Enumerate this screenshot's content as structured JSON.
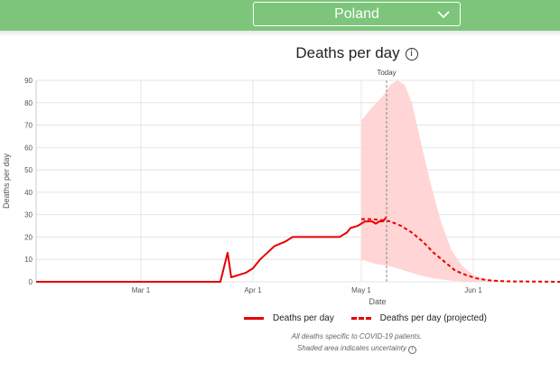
{
  "header": {
    "country": "Poland",
    "country_dropdown_icon": "chevron-down-icon"
  },
  "chart_data": {
    "type": "line",
    "title": "Deaths per day",
    "xlabel": "Date",
    "ylabel": "Deaths per day",
    "x_range": [
      "2020-02-01",
      "2020-06-25"
    ],
    "ylim": [
      0,
      90
    ],
    "y_ticks": [
      0,
      10,
      20,
      30,
      40,
      50,
      60,
      70,
      80,
      90
    ],
    "x_ticks": [
      {
        "date": "2020-03-01",
        "label": "Mar 1"
      },
      {
        "date": "2020-04-01",
        "label": "Apr 1"
      },
      {
        "date": "2020-05-01",
        "label": "May 1"
      },
      {
        "date": "2020-06-01",
        "label": "Jun 1"
      }
    ],
    "today": {
      "date": "2020-05-08",
      "label": "Today"
    },
    "grid": true,
    "series": [
      {
        "name": "Deaths per day",
        "style": "solid",
        "color": "#e60000",
        "points": [
          [
            "2020-02-01",
            0
          ],
          [
            "2020-03-23",
            0
          ],
          [
            "2020-03-25",
            13
          ],
          [
            "2020-03-26",
            2
          ],
          [
            "2020-03-28",
            3
          ],
          [
            "2020-03-30",
            4
          ],
          [
            "2020-04-01",
            6
          ],
          [
            "2020-04-03",
            10
          ],
          [
            "2020-04-05",
            13
          ],
          [
            "2020-04-07",
            16
          ],
          [
            "2020-04-10",
            18
          ],
          [
            "2020-04-12",
            20
          ],
          [
            "2020-04-20",
            20
          ],
          [
            "2020-04-25",
            20
          ],
          [
            "2020-04-27",
            22
          ],
          [
            "2020-04-28",
            24
          ],
          [
            "2020-04-30",
            25
          ],
          [
            "2020-05-02",
            27
          ],
          [
            "2020-05-04",
            27
          ],
          [
            "2020-05-05",
            26
          ],
          [
            "2020-05-06",
            27
          ],
          [
            "2020-05-07",
            27
          ],
          [
            "2020-05-08",
            29
          ]
        ]
      },
      {
        "name": "Deaths per day (projected)",
        "style": "dashed",
        "color": "#e60000",
        "points": [
          [
            "2020-05-01",
            28
          ],
          [
            "2020-05-04",
            28
          ],
          [
            "2020-05-07",
            27.5
          ],
          [
            "2020-05-09",
            27
          ],
          [
            "2020-05-12",
            25
          ],
          [
            "2020-05-15",
            22
          ],
          [
            "2020-05-18",
            18
          ],
          [
            "2020-05-21",
            13
          ],
          [
            "2020-05-24",
            9
          ],
          [
            "2020-05-27",
            5
          ],
          [
            "2020-05-30",
            3
          ],
          [
            "2020-06-02",
            1.5
          ],
          [
            "2020-06-05",
            0.7
          ],
          [
            "2020-06-10",
            0.2
          ],
          [
            "2020-06-25",
            0
          ]
        ]
      }
    ],
    "uncertainty_band": {
      "color": "#ffd0d0",
      "upper": [
        [
          "2020-05-01",
          72
        ],
        [
          "2020-05-04",
          78
        ],
        [
          "2020-05-07",
          83
        ],
        [
          "2020-05-09",
          88
        ],
        [
          "2020-05-11",
          90
        ],
        [
          "2020-05-13",
          88
        ],
        [
          "2020-05-15",
          80
        ],
        [
          "2020-05-17",
          66
        ],
        [
          "2020-05-20",
          45
        ],
        [
          "2020-05-23",
          27
        ],
        [
          "2020-05-26",
          14
        ],
        [
          "2020-05-29",
          7
        ],
        [
          "2020-06-01",
          3
        ],
        [
          "2020-06-05",
          1
        ],
        [
          "2020-06-12",
          0
        ]
      ],
      "lower": [
        [
          "2020-05-01",
          10
        ],
        [
          "2020-05-05",
          8
        ],
        [
          "2020-05-09",
          7
        ],
        [
          "2020-05-13",
          5
        ],
        [
          "2020-05-17",
          3
        ],
        [
          "2020-05-21",
          1.5
        ],
        [
          "2020-05-26",
          0.5
        ],
        [
          "2020-06-01",
          0
        ],
        [
          "2020-06-12",
          0
        ]
      ]
    },
    "legend": {
      "placement": "bottom",
      "items": [
        "Deaths per day",
        "Deaths per day (projected)"
      ]
    }
  },
  "notes": {
    "line1": "All deaths specific to COVID-19 patients.",
    "line2": "Shaded area indicates uncertainty"
  }
}
